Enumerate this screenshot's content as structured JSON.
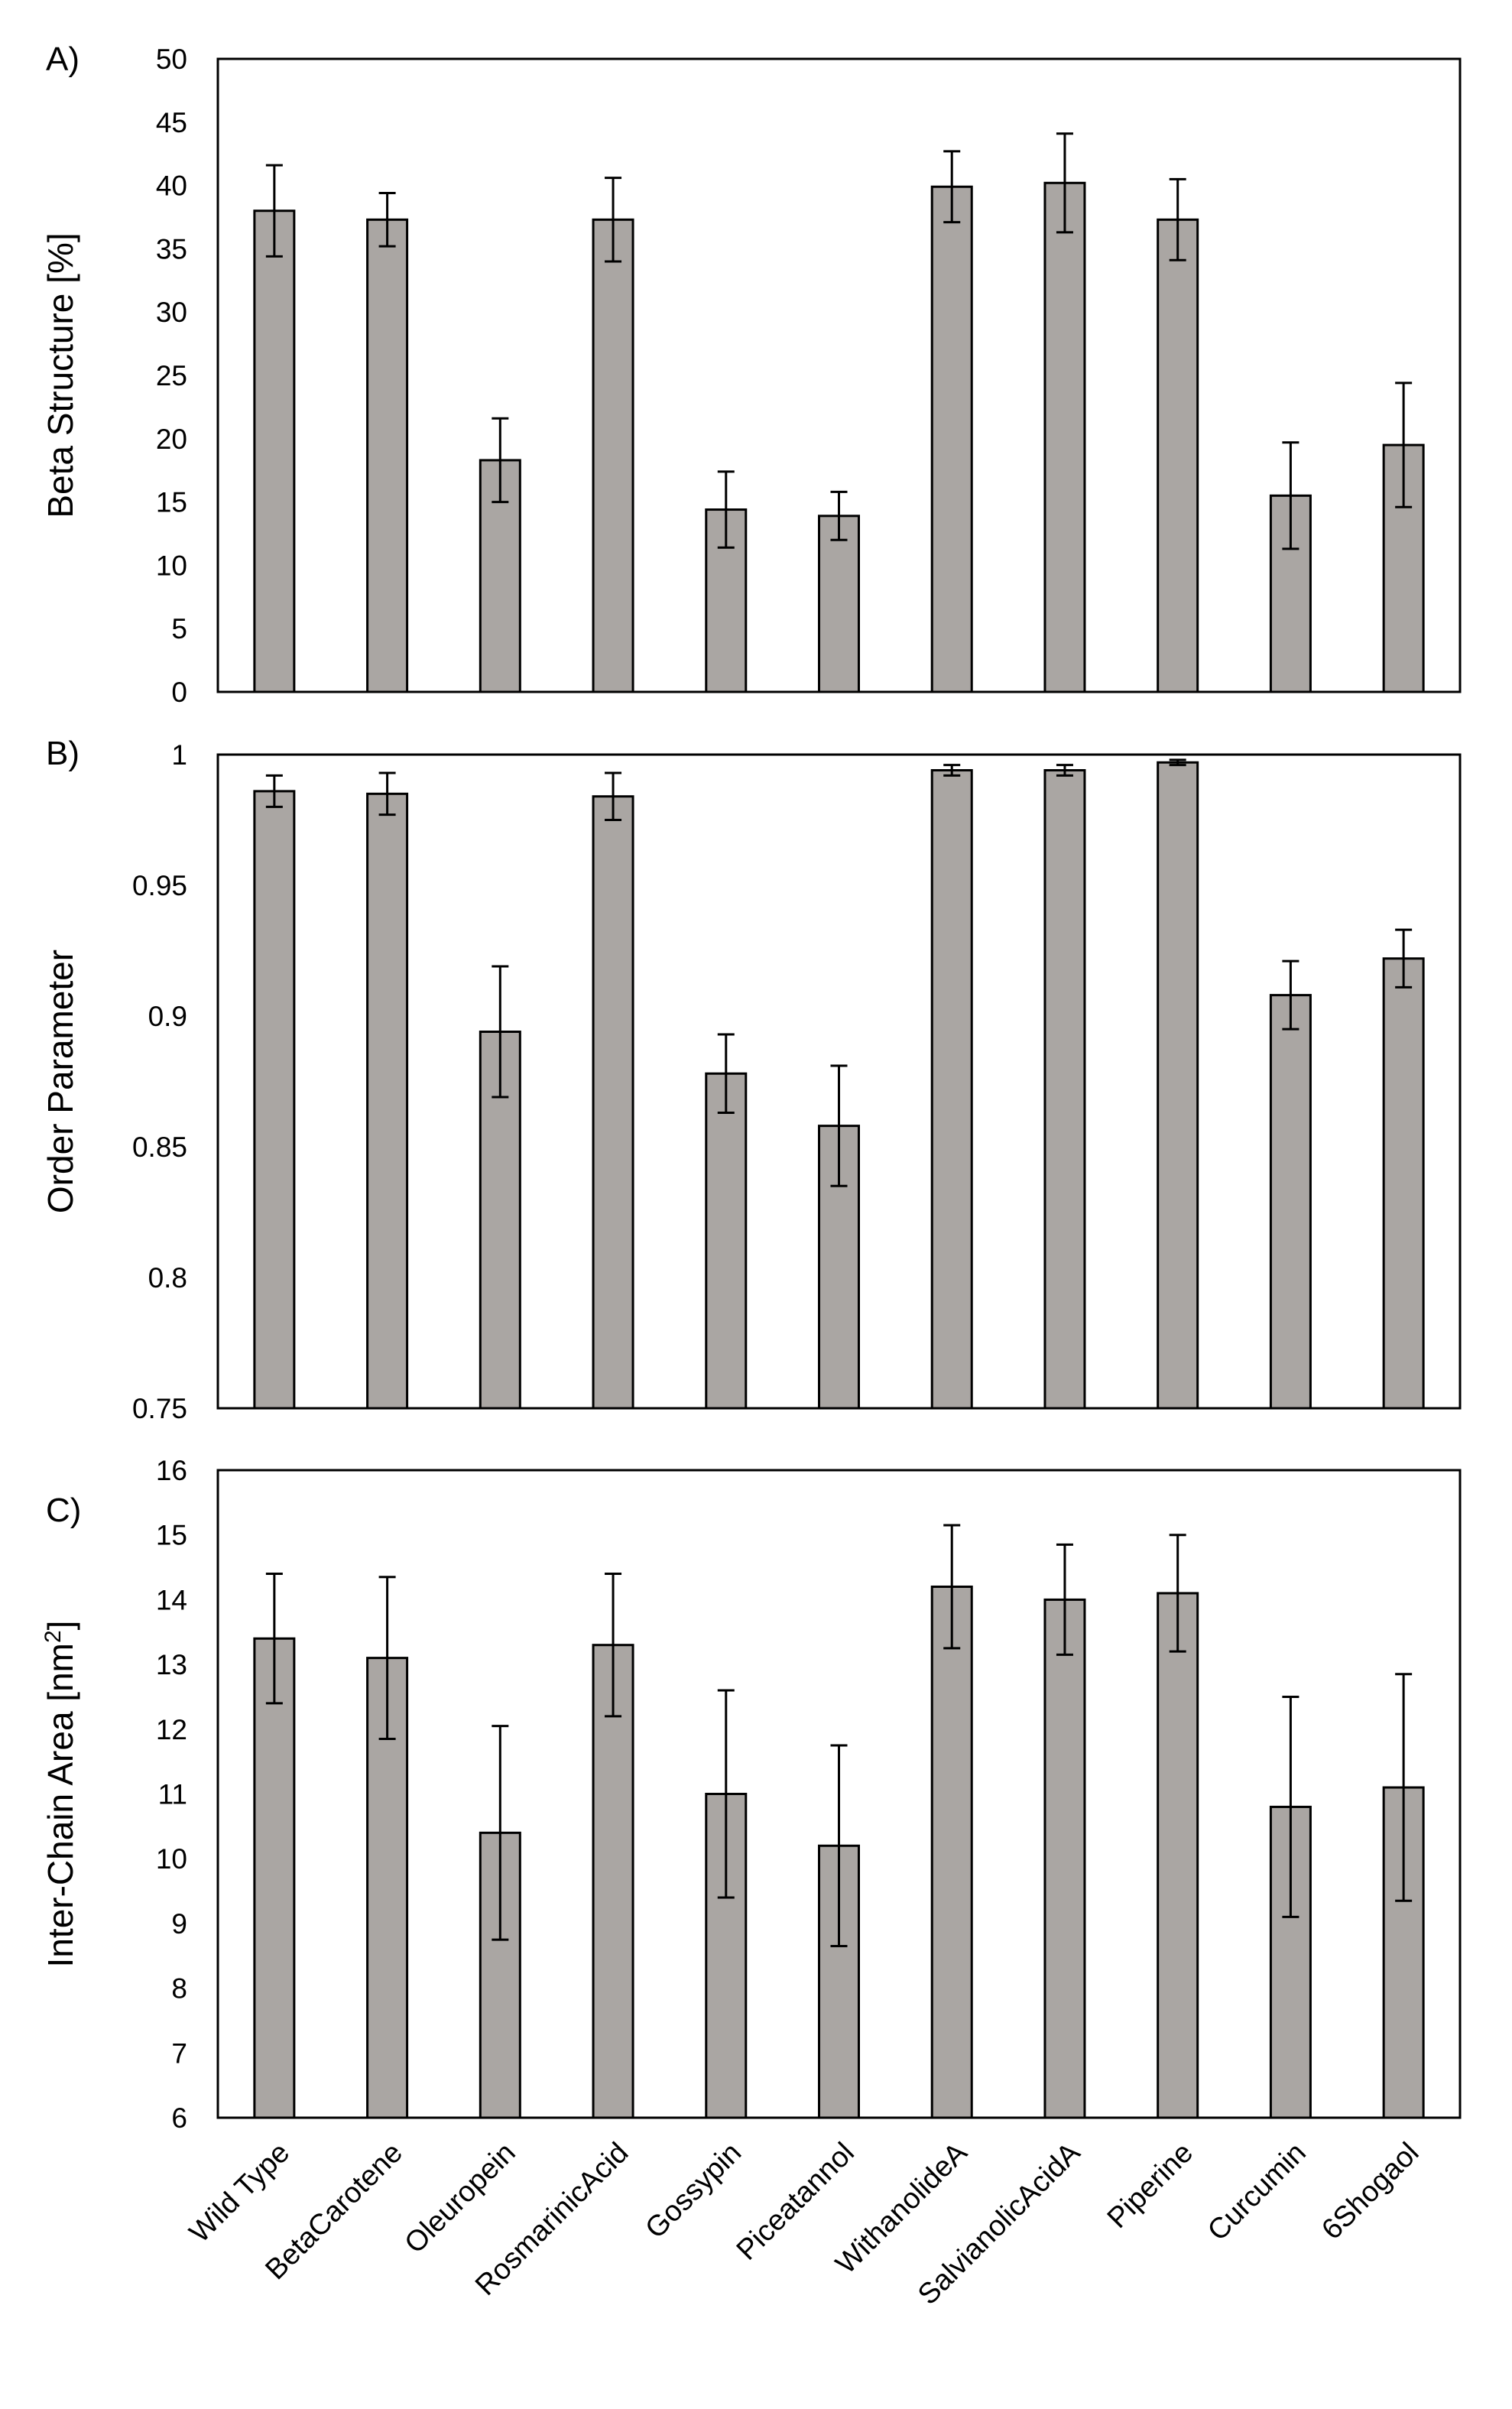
{
  "chart_data": [
    {
      "type": "bar",
      "panel_label": "A)",
      "categories": [
        "Wild Type",
        "BetaCarotene",
        "Oleuropein",
        "RosmarinicAcid",
        "Gossypin",
        "Piceatannol",
        "WithanolideA",
        "SalvianolicAcidA",
        "Piperine",
        "Curcumin",
        "6Shogaol"
      ],
      "values": [
        38.0,
        37.3,
        18.3,
        37.3,
        14.4,
        13.9,
        39.9,
        40.2,
        37.3,
        15.5,
        19.5
      ],
      "errors": [
        3.6,
        2.1,
        3.3,
        3.3,
        3.0,
        1.9,
        2.8,
        3.9,
        3.2,
        4.2,
        4.9
      ],
      "ylabel": "Beta Structure [%]",
      "ylim": [
        0,
        50
      ],
      "yticks": [
        "0",
        "5",
        "10",
        "15",
        "20",
        "25",
        "30",
        "35",
        "40",
        "45",
        "50"
      ]
    },
    {
      "type": "bar",
      "panel_label": "B)",
      "categories": [
        "Wild Type",
        "BetaCarotene",
        "Oleuropein",
        "RosmarinicAcid",
        "Gossypin",
        "Piceatannol",
        "WithanolideA",
        "SalvianolicAcidA",
        "Piperine",
        "Curcumin",
        "6Shogaol"
      ],
      "values": [
        0.986,
        0.985,
        0.894,
        0.984,
        0.878,
        0.858,
        0.994,
        0.994,
        0.997,
        0.908,
        0.922
      ],
      "errors": [
        0.006,
        0.008,
        0.025,
        0.009,
        0.015,
        0.023,
        0.002,
        0.002,
        0.001,
        0.013,
        0.011
      ],
      "ylabel": "Order Parameter",
      "ylim": [
        0.75,
        1.0
      ],
      "yticks": [
        "0.75",
        "0.8",
        "0.85",
        "0.9",
        "0.95",
        "1"
      ]
    },
    {
      "type": "bar",
      "panel_label": "C)",
      "categories": [
        "Wild Type",
        "BetaCarotene",
        "Oleuropein",
        "RosmarinicAcid",
        "Gossypin",
        "Piceatannol",
        "WithanolideA",
        "SalvianolicAcidA",
        "Piperine",
        "Curcumin",
        "6Shogaol"
      ],
      "values": [
        13.4,
        13.1,
        10.4,
        13.3,
        11.0,
        10.2,
        14.2,
        14.0,
        14.1,
        10.8,
        11.1
      ],
      "errors": [
        1.0,
        1.25,
        1.65,
        1.1,
        1.6,
        1.55,
        0.95,
        0.85,
        0.9,
        1.7,
        1.75
      ],
      "ylabel": "Inter-Chain Area [nm",
      "ylabel_superscript": "2",
      "ylabel_suffix": "]",
      "ylim": [
        6,
        16
      ],
      "yticks": [
        "6",
        "7",
        "8",
        "9",
        "10",
        "11",
        "12",
        "13",
        "14",
        "15",
        "16"
      ]
    }
  ]
}
